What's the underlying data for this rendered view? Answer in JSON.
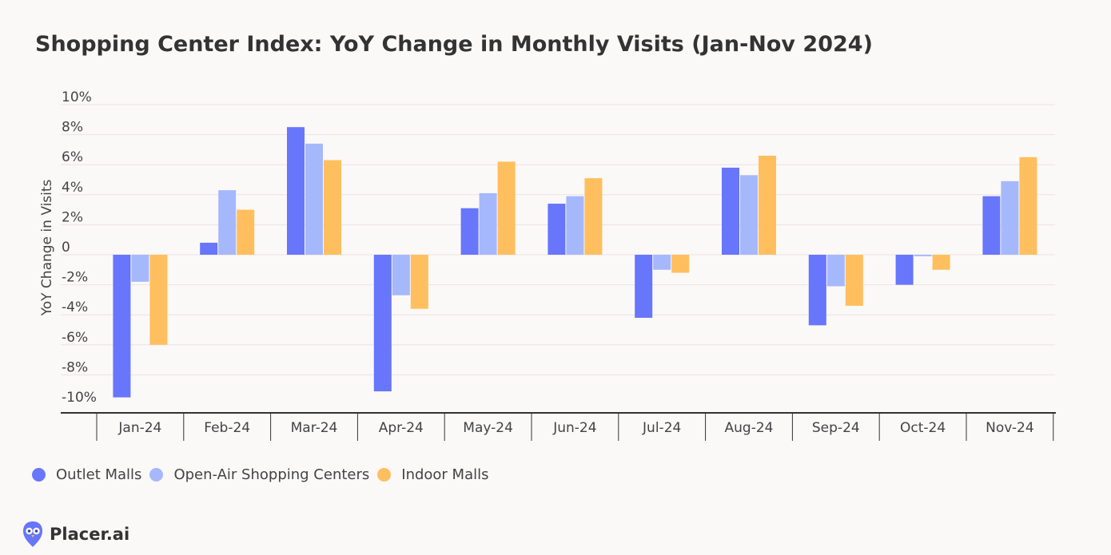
{
  "title": "Shopping Center Index: YoY Change in Monthly Visits (Jan-Nov 2024)",
  "legend": [
    {
      "name": "Outlet Malls",
      "color": "#6776fb"
    },
    {
      "name": "Open-Air Shopping Centers",
      "color": "#a6b8fc"
    },
    {
      "name": "Indoor Malls",
      "color": "#ffbf5e"
    }
  ],
  "brand": {
    "name": "Placer.ai",
    "logo_icon": "placer-owl-icon"
  },
  "chart_data": {
    "type": "bar",
    "title": "Shopping Center Index: YoY Change in Monthly Visits (Jan-Nov 2024)",
    "xlabel": "",
    "ylabel": "YoY Change in Visits",
    "ylim": [
      -10,
      10
    ],
    "yticks": [
      10,
      8,
      6,
      4,
      2,
      0,
      -2,
      -4,
      -6,
      -8,
      -10
    ],
    "ytick_labels": [
      "10%",
      "8%",
      "6%",
      "4%",
      "2%",
      "0",
      "-2%",
      "-4%",
      "-6%",
      "-8%",
      "-10%"
    ],
    "categories": [
      "Jan-24",
      "Feb-24",
      "Mar-24",
      "Apr-24",
      "May-24",
      "Jun-24",
      "Jul-24",
      "Aug-24",
      "Sep-24",
      "Oct-24",
      "Nov-24"
    ],
    "series": [
      {
        "name": "Outlet Malls",
        "color": "#6776fb",
        "values": [
          -9.5,
          0.8,
          8.5,
          -9.1,
          3.1,
          3.4,
          -4.2,
          5.8,
          -4.7,
          -2.0,
          3.9
        ]
      },
      {
        "name": "Open-Air Shopping Centers",
        "color": "#a6b8fc",
        "values": [
          -1.8,
          4.3,
          7.4,
          -2.7,
          4.1,
          3.9,
          -1.0,
          5.3,
          -2.1,
          -0.1,
          4.9
        ]
      },
      {
        "name": "Indoor Malls",
        "color": "#ffbf5e",
        "values": [
          -6.0,
          3.0,
          6.3,
          -3.6,
          6.2,
          5.1,
          -1.2,
          6.6,
          -3.4,
          -1.0,
          6.5
        ]
      }
    ]
  }
}
